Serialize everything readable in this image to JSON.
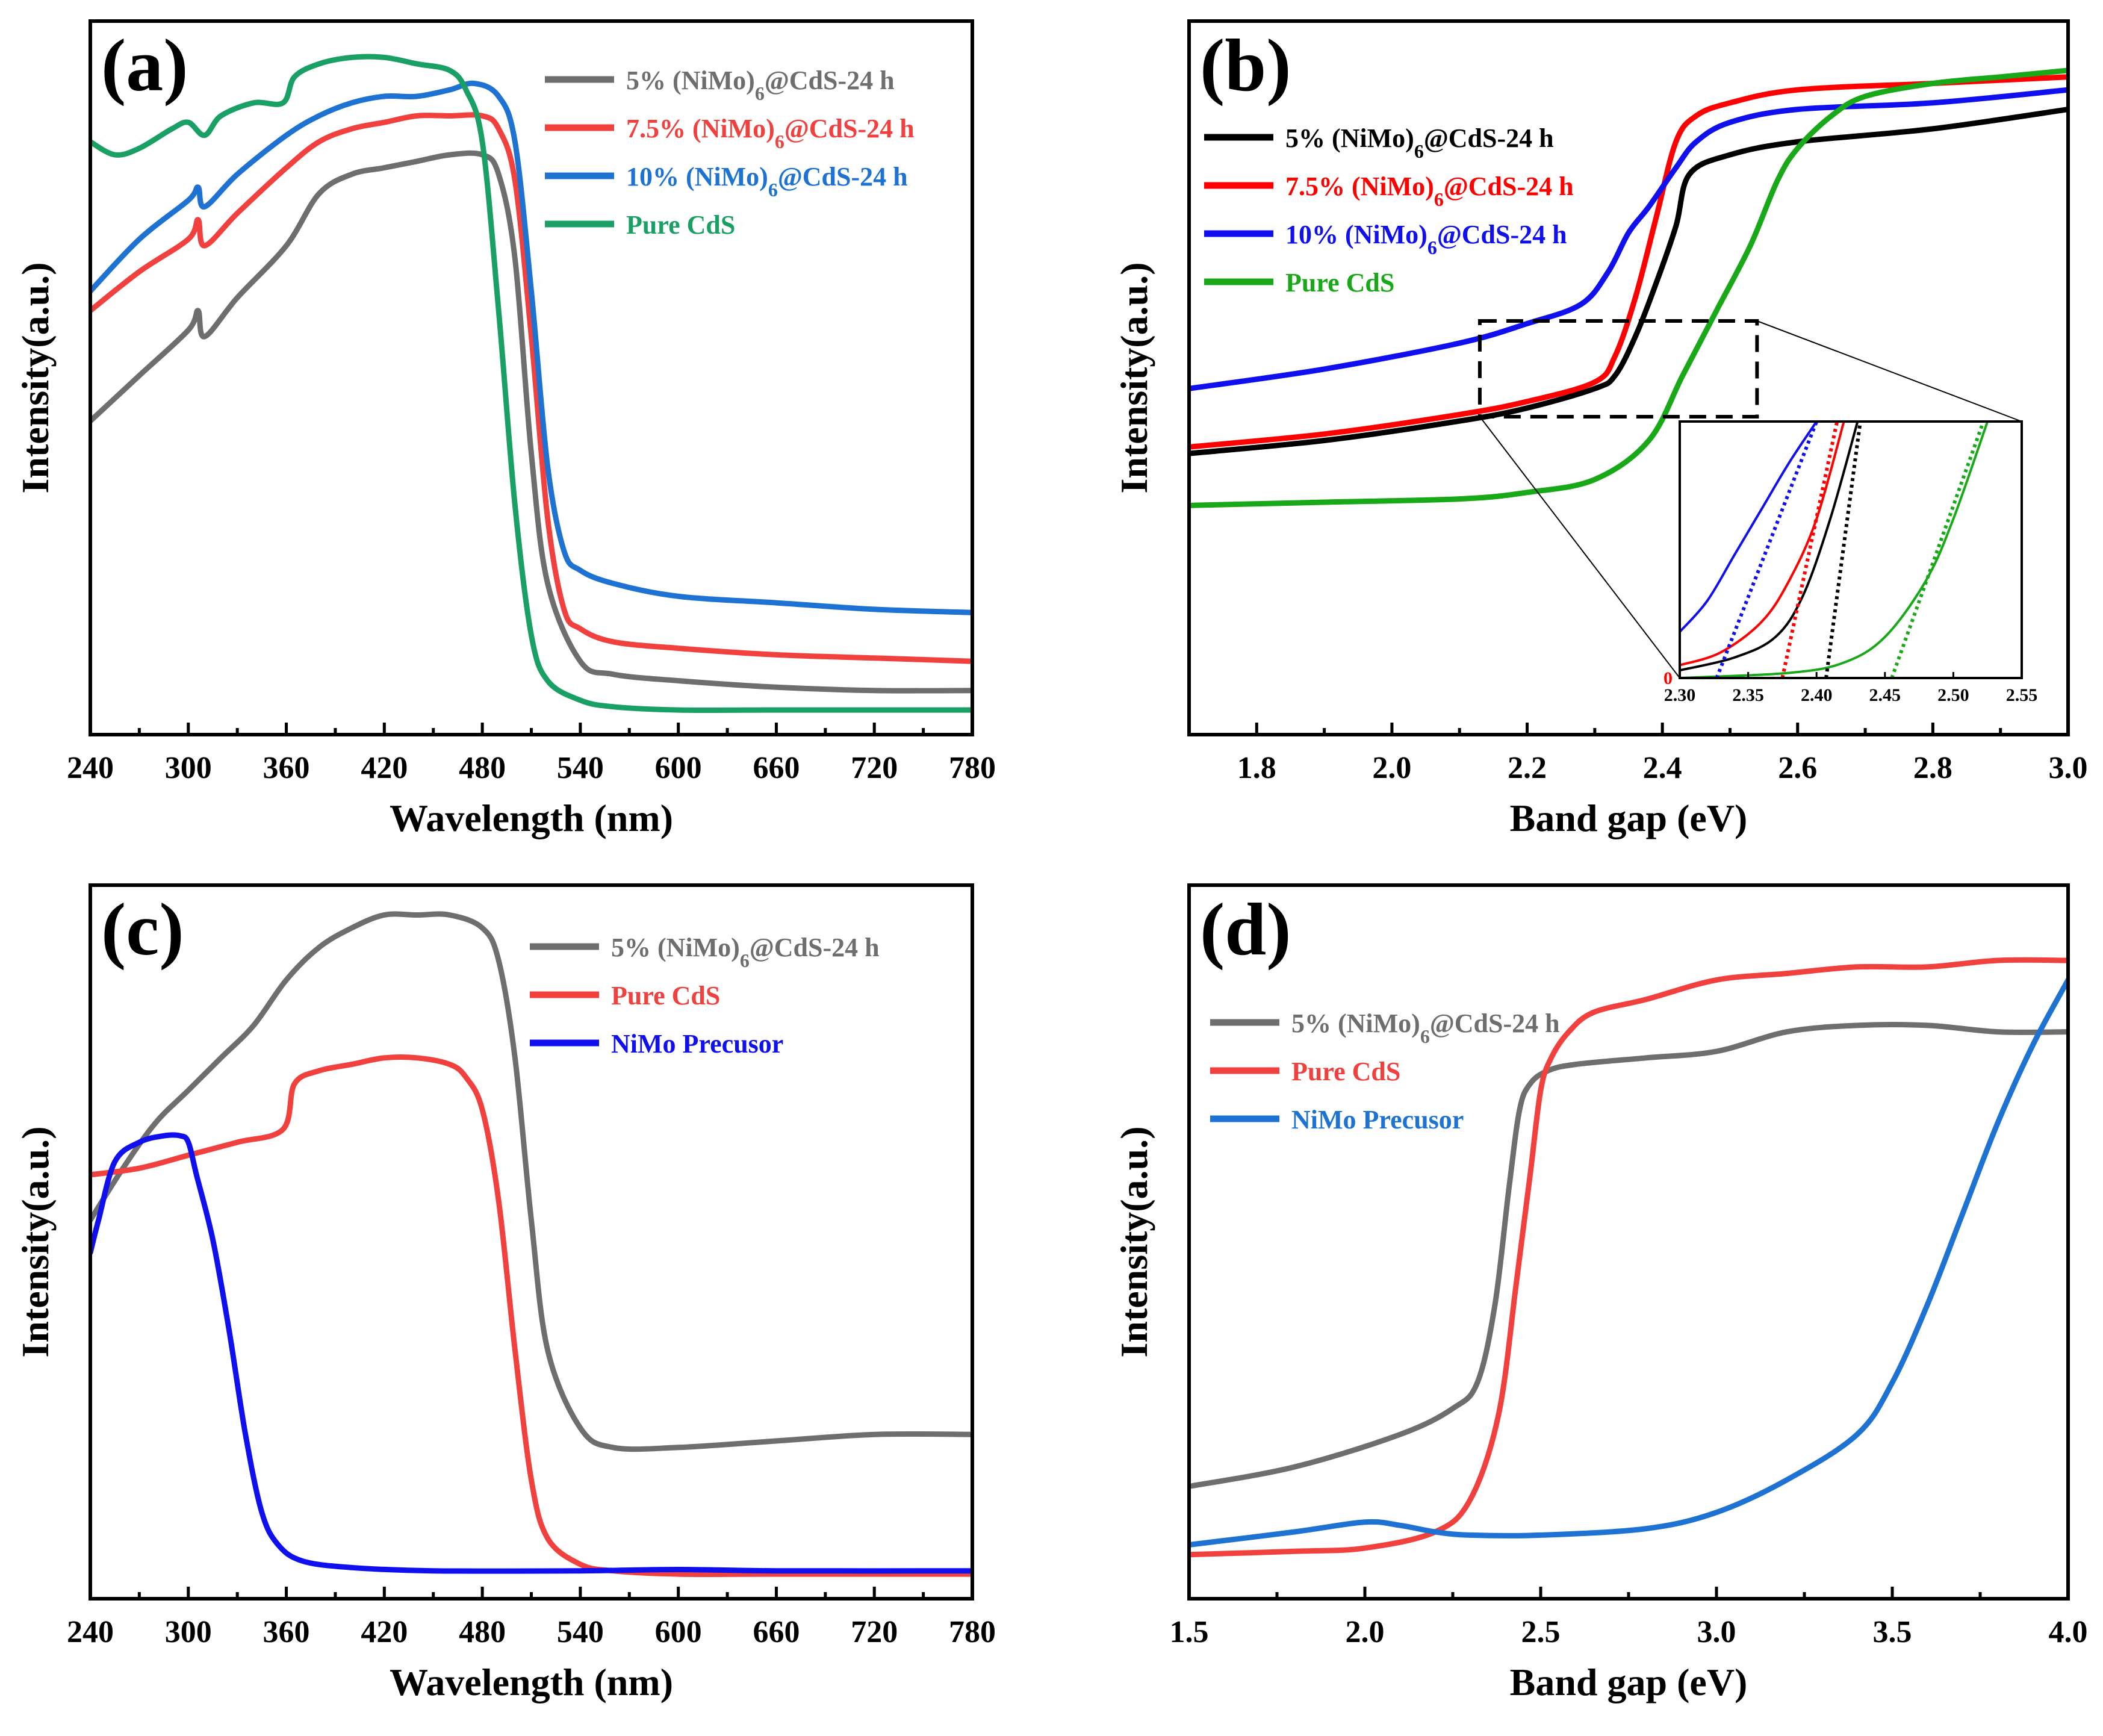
{
  "figure": {
    "colors": {
      "gray": "#6e6e6e",
      "red": "#f0413e",
      "blue": "#1e73d2",
      "teal": "#1aa064",
      "black": "#000000",
      "pure_red": "#ff0000",
      "pure_blue": "#1010ee",
      "green": "#18a818"
    }
  },
  "chart_data": [
    {
      "id": "a",
      "type": "line",
      "panel_label": "(a)",
      "xlabel": "Wavelength (nm)",
      "ylabel": "Intensity(a.u.)",
      "xlim": [
        240,
        780
      ],
      "ylim": [
        0,
        1
      ],
      "xticks": [
        "240",
        "300",
        "360",
        "420",
        "480",
        "540",
        "600",
        "660",
        "720",
        "780"
      ],
      "legend_position": "top-right",
      "series": [
        {
          "name": "5% (NiMo)6@CdS-24 h",
          "legend": "5% (NiMo)",
          "sub": "6",
          "suffix": "@CdS-24 h",
          "color": "gray",
          "x": [
            240,
            270,
            300,
            306,
            310,
            330,
            360,
            380,
            400,
            420,
            440,
            460,
            480,
            490,
            500,
            510,
            520,
            540,
            560,
            600,
            660,
            720,
            780
          ],
          "y": [
            0.45,
            0.52,
            0.59,
            0.62,
            0.58,
            0.64,
            0.72,
            0.8,
            0.83,
            0.84,
            0.85,
            0.86,
            0.86,
            0.83,
            0.7,
            0.4,
            0.2,
            0.08,
            0.06,
            0.05,
            0.04,
            0.035,
            0.035
          ]
        },
        {
          "name": "7.5% (NiMo)6@CdS-24 h",
          "legend": "7.5% (NiMo)",
          "sub": "6",
          "suffix": "@CdS-24 h",
          "color": "red",
          "x": [
            240,
            270,
            300,
            306,
            310,
            330,
            360,
            380,
            400,
            420,
            440,
            460,
            480,
            490,
            500,
            510,
            520,
            530,
            540,
            560,
            600,
            660,
            720,
            780
          ],
          "y": [
            0.62,
            0.68,
            0.73,
            0.76,
            0.72,
            0.77,
            0.84,
            0.88,
            0.9,
            0.91,
            0.92,
            0.92,
            0.92,
            0.9,
            0.82,
            0.58,
            0.3,
            0.16,
            0.13,
            0.11,
            0.1,
            0.09,
            0.085,
            0.08
          ]
        },
        {
          "name": "10% (NiMo)6@CdS-24 h",
          "legend": "10% (NiMo)",
          "sub": "6",
          "suffix": "@CdS-24 h",
          "color": "blue",
          "x": [
            240,
            270,
            300,
            306,
            310,
            330,
            360,
            380,
            400,
            420,
            440,
            460,
            475,
            490,
            500,
            510,
            520,
            530,
            540,
            560,
            600,
            660,
            720,
            780
          ],
          "y": [
            0.65,
            0.73,
            0.79,
            0.81,
            0.78,
            0.83,
            0.89,
            0.92,
            0.94,
            0.95,
            0.95,
            0.96,
            0.97,
            0.95,
            0.88,
            0.65,
            0.38,
            0.25,
            0.22,
            0.2,
            0.18,
            0.17,
            0.16,
            0.155
          ]
        },
        {
          "name": "Pure CdS",
          "legend": "Pure CdS",
          "sub": "",
          "suffix": "",
          "color": "teal",
          "x": [
            240,
            255,
            270,
            290,
            300,
            310,
            320,
            340,
            358,
            365,
            380,
            400,
            420,
            440,
            460,
            470,
            480,
            490,
            500,
            510,
            520,
            540,
            560,
            600,
            660,
            720,
            780
          ],
          "y": [
            0.88,
            0.86,
            0.87,
            0.9,
            0.91,
            0.89,
            0.92,
            0.94,
            0.94,
            0.98,
            1.0,
            1.01,
            1.01,
            1.0,
            0.99,
            0.96,
            0.88,
            0.62,
            0.32,
            0.12,
            0.05,
            0.02,
            0.01,
            0.005,
            0.005,
            0.005,
            0.005
          ]
        }
      ]
    },
    {
      "id": "b",
      "type": "line",
      "panel_label": "(b)",
      "xlabel": "Band gap (eV)",
      "ylabel": "Intensity(a.u.)",
      "xlim": [
        1.7,
        3.0
      ],
      "ylim": [
        0,
        1
      ],
      "xticks": [
        "1.8",
        "2.0",
        "2.2",
        "2.4",
        "2.6",
        "2.8",
        "3.0"
      ],
      "legend_position": "top-left",
      "series": [
        {
          "name": "5% (NiMo)6@CdS-24 h",
          "legend": "5% (NiMo)",
          "sub": "6",
          "suffix": "@CdS-24 h",
          "color": "black",
          "x": [
            1.7,
            1.9,
            2.1,
            2.2,
            2.3,
            2.33,
            2.36,
            2.39,
            2.42,
            2.44,
            2.5,
            2.6,
            2.8,
            3.0
          ],
          "y": [
            0.4,
            0.42,
            0.45,
            0.47,
            0.5,
            0.52,
            0.58,
            0.66,
            0.75,
            0.83,
            0.86,
            0.88,
            0.9,
            0.93
          ]
        },
        {
          "name": "7.5% (NiMo)6@CdS-24 h",
          "legend": "7.5% (NiMo)",
          "sub": "6",
          "suffix": "@CdS-24 h",
          "color": "pure_red",
          "x": [
            1.7,
            1.9,
            2.1,
            2.2,
            2.3,
            2.33,
            2.36,
            2.39,
            2.42,
            2.45,
            2.5,
            2.6,
            2.8,
            3.0
          ],
          "y": [
            0.41,
            0.43,
            0.46,
            0.48,
            0.51,
            0.55,
            0.64,
            0.76,
            0.88,
            0.92,
            0.94,
            0.96,
            0.97,
            0.98
          ]
        },
        {
          "name": "10% (NiMo)6@CdS-24 h",
          "legend": "10% (NiMo)",
          "sub": "6",
          "suffix": "@CdS-24 h",
          "color": "pure_blue",
          "x": [
            1.7,
            1.9,
            2.1,
            2.2,
            2.28,
            2.32,
            2.35,
            2.38,
            2.42,
            2.45,
            2.5,
            2.6,
            2.8,
            3.0
          ],
          "y": [
            0.5,
            0.53,
            0.57,
            0.6,
            0.63,
            0.68,
            0.74,
            0.78,
            0.84,
            0.88,
            0.91,
            0.93,
            0.94,
            0.96
          ]
        },
        {
          "name": "Pure CdS",
          "legend": "Pure CdS",
          "sub": "",
          "suffix": "",
          "color": "green",
          "x": [
            1.7,
            1.9,
            2.1,
            2.2,
            2.3,
            2.38,
            2.43,
            2.48,
            2.53,
            2.57,
            2.6,
            2.65,
            2.7,
            2.8,
            2.9,
            3.0
          ],
          "y": [
            0.32,
            0.325,
            0.33,
            0.34,
            0.36,
            0.42,
            0.52,
            0.62,
            0.72,
            0.82,
            0.87,
            0.92,
            0.95,
            0.97,
            0.98,
            0.99
          ]
        }
      ],
      "inset": {
        "xlim": [
          2.3,
          2.55
        ],
        "ylim": [
          0,
          1
        ],
        "xticks": [
          "2.30",
          "2.35",
          "2.40",
          "2.45",
          "2.50",
          "2.55"
        ],
        "ytick": "0",
        "source_box_x": [
          2.13,
          2.54
        ],
        "series": [
          {
            "color": "pure_blue",
            "x": [
              2.3,
              2.32,
              2.34,
              2.36,
              2.38,
              2.4
            ],
            "y": [
              0.18,
              0.3,
              0.48,
              0.66,
              0.84,
              1.0
            ]
          },
          {
            "color": "pure_red",
            "x": [
              2.3,
              2.33,
              2.36,
              2.38,
              2.4,
              2.42
            ],
            "y": [
              0.05,
              0.1,
              0.22,
              0.38,
              0.62,
              1.0
            ]
          },
          {
            "color": "black",
            "x": [
              2.3,
              2.34,
              2.37,
              2.39,
              2.41,
              2.43
            ],
            "y": [
              0.03,
              0.08,
              0.16,
              0.32,
              0.62,
              1.0
            ]
          },
          {
            "color": "green",
            "x": [
              2.3,
              2.38,
              2.42,
              2.45,
              2.48,
              2.5,
              2.525
            ],
            "y": [
              0.0,
              0.02,
              0.06,
              0.16,
              0.38,
              0.62,
              1.0
            ]
          }
        ],
        "fits": [
          {
            "color": "pure_blue",
            "x": [
              2.327,
              2.4
            ],
            "y": [
              0.0,
              1.0
            ]
          },
          {
            "color": "pure_red",
            "x": [
              2.375,
              2.415
            ],
            "y": [
              0.0,
              1.0
            ]
          },
          {
            "color": "black",
            "x": [
              2.407,
              2.432
            ],
            "y": [
              0.0,
              1.0
            ]
          },
          {
            "color": "green",
            "x": [
              2.455,
              2.522
            ],
            "y": [
              0.0,
              1.0
            ]
          }
        ]
      }
    },
    {
      "id": "c",
      "type": "line",
      "panel_label": "(c)",
      "xlabel": "Wavelength (nm)",
      "ylabel": "Intensity(a.u.)",
      "xlim": [
        240,
        780
      ],
      "ylim": [
        0,
        1
      ],
      "xticks": [
        "240",
        "300",
        "360",
        "420",
        "480",
        "540",
        "600",
        "660",
        "720",
        "780"
      ],
      "legend_position": "top-right",
      "series": [
        {
          "name": "5% (NiMo)6@CdS-24 h",
          "legend": "5% (NiMo)",
          "sub": "6",
          "suffix": "@CdS-24 h",
          "color": "gray",
          "x": [
            240,
            260,
            280,
            300,
            320,
            340,
            360,
            380,
            400,
            420,
            440,
            460,
            480,
            490,
            500,
            510,
            520,
            540,
            560,
            600,
            660,
            720,
            780
          ],
          "y": [
            0.55,
            0.63,
            0.7,
            0.75,
            0.8,
            0.85,
            0.92,
            0.97,
            1.0,
            1.02,
            1.02,
            1.02,
            1.0,
            0.95,
            0.8,
            0.55,
            0.35,
            0.23,
            0.2,
            0.2,
            0.21,
            0.22,
            0.22
          ]
        },
        {
          "name": "Pure CdS",
          "legend": "Pure CdS",
          "sub": "",
          "suffix": "",
          "color": "red",
          "x": [
            240,
            270,
            300,
            330,
            358,
            365,
            380,
            400,
            420,
            440,
            460,
            470,
            480,
            490,
            500,
            510,
            520,
            540,
            560,
            600,
            660,
            780
          ],
          "y": [
            0.62,
            0.63,
            0.65,
            0.67,
            0.69,
            0.76,
            0.78,
            0.79,
            0.8,
            0.8,
            0.79,
            0.77,
            0.72,
            0.58,
            0.35,
            0.15,
            0.06,
            0.02,
            0.01,
            0.005,
            0.005,
            0.005
          ]
        },
        {
          "name": "NiMo Precusor",
          "legend": "NiMo Precusor",
          "sub": "",
          "suffix": "",
          "color": "pure_blue",
          "x": [
            240,
            245,
            255,
            270,
            285,
            295,
            300,
            305,
            315,
            325,
            335,
            345,
            355,
            370,
            400,
            450,
            540,
            600,
            660,
            780
          ],
          "y": [
            0.5,
            0.55,
            0.64,
            0.67,
            0.68,
            0.68,
            0.67,
            0.62,
            0.52,
            0.38,
            0.22,
            0.1,
            0.05,
            0.025,
            0.015,
            0.01,
            0.01,
            0.012,
            0.01,
            0.01
          ]
        }
      ]
    },
    {
      "id": "d",
      "type": "line",
      "panel_label": "(d)",
      "xlabel": "Band gap (eV)",
      "ylabel": "Intensity(a.u.)",
      "xlim": [
        1.5,
        4.0
      ],
      "ylim": [
        0,
        1
      ],
      "xticks": [
        "1.5",
        "2.0",
        "2.5",
        "3.0",
        "3.5",
        "4.0"
      ],
      "legend_position": "top-left",
      "series": [
        {
          "name": "5% (NiMo)6@CdS-24 h",
          "legend": "5% (NiMo)",
          "sub": "6",
          "suffix": "@CdS-24 h",
          "color": "gray",
          "x": [
            1.5,
            1.8,
            2.1,
            2.25,
            2.32,
            2.37,
            2.41,
            2.44,
            2.47,
            2.52,
            2.6,
            2.8,
            3.0,
            3.2,
            3.4,
            3.6,
            3.8,
            4.0
          ],
          "y": [
            0.14,
            0.17,
            0.22,
            0.26,
            0.3,
            0.42,
            0.6,
            0.72,
            0.76,
            0.78,
            0.79,
            0.8,
            0.81,
            0.84,
            0.85,
            0.85,
            0.84,
            0.84
          ]
        },
        {
          "name": "Pure CdS",
          "legend": "Pure CdS",
          "sub": "",
          "suffix": "",
          "color": "red",
          "x": [
            1.5,
            1.8,
            2.0,
            2.2,
            2.3,
            2.38,
            2.43,
            2.47,
            2.5,
            2.53,
            2.58,
            2.65,
            2.8,
            3.0,
            3.2,
            3.4,
            3.6,
            3.8,
            4.0
          ],
          "y": [
            0.035,
            0.04,
            0.045,
            0.07,
            0.12,
            0.25,
            0.45,
            0.62,
            0.75,
            0.8,
            0.84,
            0.87,
            0.89,
            0.92,
            0.93,
            0.94,
            0.94,
            0.95,
            0.95
          ]
        },
        {
          "name": "NiMo Precusor",
          "legend": "NiMo Precusor",
          "sub": "",
          "suffix": "",
          "color": "blue",
          "x": [
            1.5,
            1.8,
            2.0,
            2.1,
            2.2,
            2.3,
            2.5,
            2.8,
            3.0,
            3.2,
            3.4,
            3.5,
            3.6,
            3.7,
            3.8,
            3.9,
            4.0
          ],
          "y": [
            0.05,
            0.07,
            0.085,
            0.08,
            0.07,
            0.065,
            0.065,
            0.075,
            0.1,
            0.15,
            0.22,
            0.3,
            0.42,
            0.56,
            0.7,
            0.82,
            0.92
          ]
        }
      ]
    }
  ]
}
